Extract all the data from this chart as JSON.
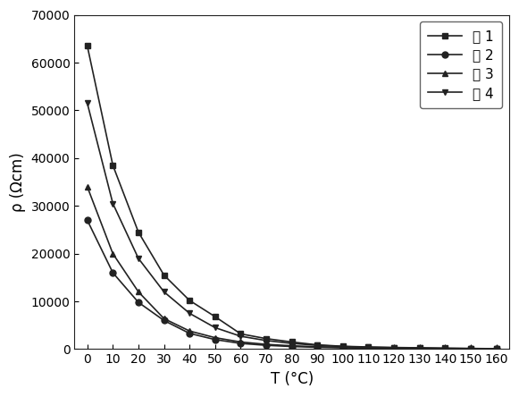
{
  "title": "",
  "xlabel": "T (°C)",
  "ylabel": "ρ (Ωcm)",
  "xlim": [
    -5,
    165
  ],
  "ylim": [
    0,
    70000
  ],
  "xticks": [
    0,
    10,
    20,
    30,
    40,
    50,
    60,
    70,
    80,
    90,
    100,
    110,
    120,
    130,
    140,
    150,
    160
  ],
  "yticks": [
    0,
    10000,
    20000,
    30000,
    40000,
    50000,
    60000,
    70000
  ],
  "series": [
    {
      "label": "例 1",
      "marker": "s",
      "color": "#222222",
      "T": [
        0,
        10,
        20,
        30,
        40,
        50,
        60,
        70,
        80,
        90,
        100,
        110,
        120,
        130,
        140,
        150,
        160
      ],
      "rho": [
        63500,
        38500,
        24500,
        15500,
        10200,
        6800,
        3200,
        2200,
        1500,
        900,
        600,
        450,
        350,
        280,
        200,
        150,
        100
      ]
    },
    {
      "label": "例 2",
      "marker": "o",
      "color": "#222222",
      "T": [
        0,
        10,
        20,
        30,
        40,
        50,
        60,
        70,
        80,
        90,
        100,
        110,
        120,
        130,
        140,
        150,
        160
      ],
      "rho": [
        27000,
        16000,
        9800,
        6000,
        3300,
        2000,
        1200,
        800,
        550,
        380,
        280,
        210,
        160,
        130,
        100,
        80,
        60
      ]
    },
    {
      "label": "例 3",
      "marker": "^",
      "color": "#222222",
      "T": [
        0,
        10,
        20,
        30,
        40,
        50,
        60,
        70,
        80,
        90,
        100,
        110,
        120,
        130,
        140,
        150,
        160
      ],
      "rho": [
        34000,
        20000,
        12000,
        6400,
        3800,
        2400,
        1500,
        1000,
        700,
        500,
        380,
        280,
        210,
        160,
        120,
        90,
        70
      ]
    },
    {
      "label": "例 4",
      "marker": "v",
      "color": "#222222",
      "T": [
        0,
        10,
        20,
        30,
        40,
        50,
        60,
        70,
        80,
        90,
        100,
        110,
        120,
        130,
        140,
        150,
        160
      ],
      "rho": [
        51500,
        30500,
        19000,
        12000,
        7500,
        4500,
        2700,
        1800,
        1200,
        800,
        550,
        400,
        310,
        240,
        180,
        130,
        90
      ]
    }
  ],
  "background_color": "#ffffff",
  "line_color": "#222222",
  "font_size": 11,
  "label_font_size": 12,
  "tick_font_size": 10
}
